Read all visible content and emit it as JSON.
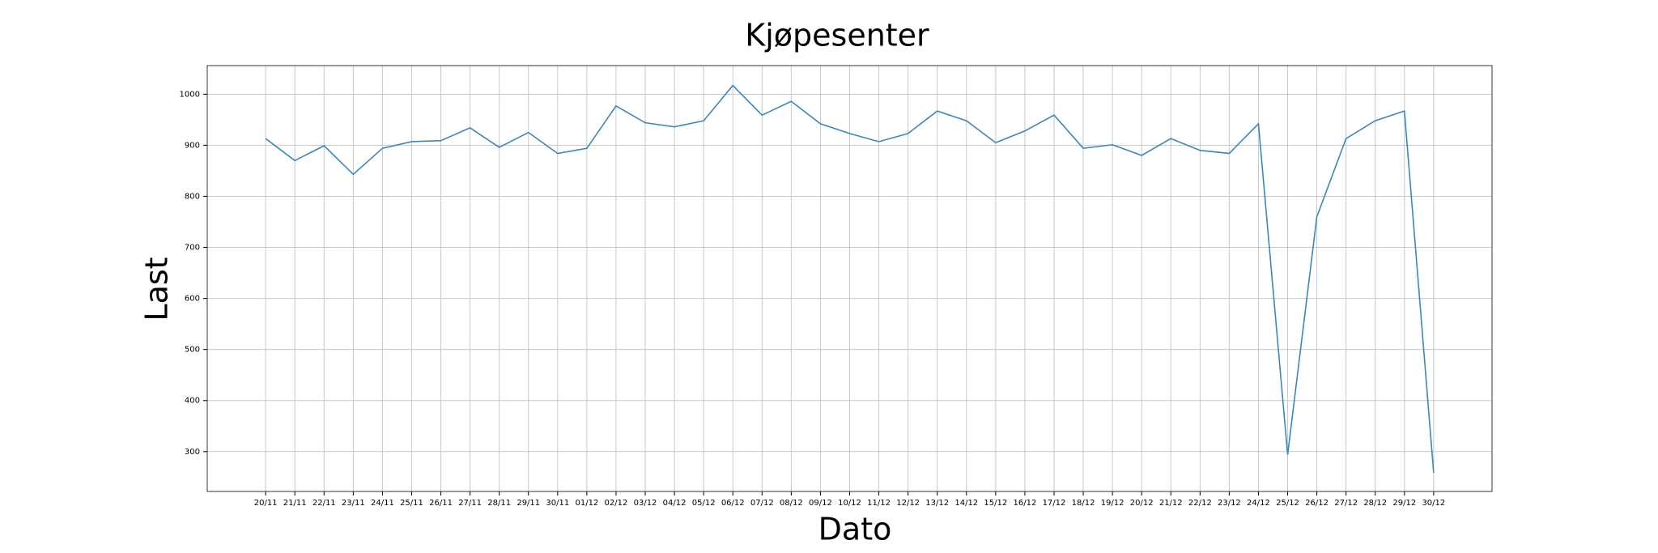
{
  "chart_data": {
    "type": "line",
    "title": "Kjøpesenter",
    "xlabel": "Dato",
    "ylabel": "Last",
    "categories": [
      "20/11",
      "21/11",
      "22/11",
      "23/11",
      "24/11",
      "25/11",
      "26/11",
      "27/11",
      "28/11",
      "29/11",
      "30/11",
      "01/12",
      "02/12",
      "03/12",
      "04/12",
      "05/12",
      "06/12",
      "07/12",
      "08/12",
      "09/12",
      "10/12",
      "11/12",
      "12/12",
      "13/12",
      "14/12",
      "15/12",
      "16/12",
      "17/12",
      "18/12",
      "19/12",
      "20/12",
      "21/12",
      "22/12",
      "23/12",
      "24/12",
      "25/12",
      "26/12",
      "27/12",
      "28/12",
      "29/12",
      "30/12"
    ],
    "values": [
      913,
      870,
      899,
      843,
      894,
      907,
      909,
      934,
      896,
      925,
      884,
      894,
      977,
      944,
      936,
      948,
      1017,
      959,
      986,
      942,
      923,
      907,
      923,
      967,
      948,
      905,
      928,
      959,
      894,
      901,
      880,
      913,
      890,
      884,
      942,
      294,
      760,
      913,
      948,
      967,
      259
    ],
    "color": "#3a87bd",
    "ylim": [
      222,
      1056
    ],
    "yticks": [
      300,
      400,
      500,
      600,
      700,
      800,
      900,
      1000
    ],
    "grid": true
  }
}
